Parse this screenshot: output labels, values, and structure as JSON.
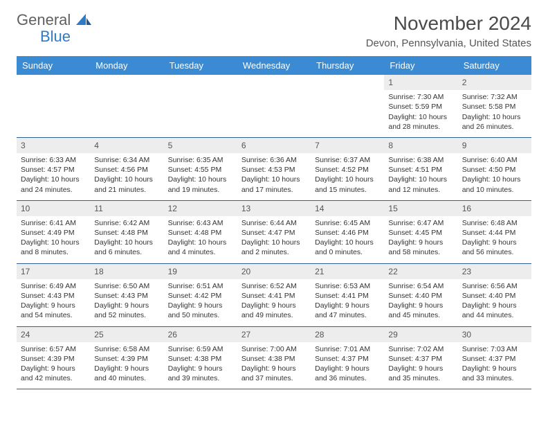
{
  "brand": {
    "name_part1": "General",
    "name_part2": "Blue",
    "color_primary": "#2d7bc8",
    "color_text": "#606060"
  },
  "header": {
    "title": "November 2024",
    "location": "Devon, Pennsylvania, United States"
  },
  "calendar": {
    "header_bg": "#3b8bd4",
    "header_fg": "#ffffff",
    "border_color": "#2d5f90",
    "daynum_bg": "#ededed",
    "columns": [
      "Sunday",
      "Monday",
      "Tuesday",
      "Wednesday",
      "Thursday",
      "Friday",
      "Saturday"
    ],
    "weeks": [
      [
        {
          "day": "",
          "lines": []
        },
        {
          "day": "",
          "lines": []
        },
        {
          "day": "",
          "lines": []
        },
        {
          "day": "",
          "lines": []
        },
        {
          "day": "",
          "lines": []
        },
        {
          "day": "1",
          "lines": [
            "Sunrise: 7:30 AM",
            "Sunset: 5:59 PM",
            "Daylight: 10 hours and 28 minutes."
          ]
        },
        {
          "day": "2",
          "lines": [
            "Sunrise: 7:32 AM",
            "Sunset: 5:58 PM",
            "Daylight: 10 hours and 26 minutes."
          ]
        }
      ],
      [
        {
          "day": "3",
          "lines": [
            "Sunrise: 6:33 AM",
            "Sunset: 4:57 PM",
            "Daylight: 10 hours and 24 minutes."
          ]
        },
        {
          "day": "4",
          "lines": [
            "Sunrise: 6:34 AM",
            "Sunset: 4:56 PM",
            "Daylight: 10 hours and 21 minutes."
          ]
        },
        {
          "day": "5",
          "lines": [
            "Sunrise: 6:35 AM",
            "Sunset: 4:55 PM",
            "Daylight: 10 hours and 19 minutes."
          ]
        },
        {
          "day": "6",
          "lines": [
            "Sunrise: 6:36 AM",
            "Sunset: 4:53 PM",
            "Daylight: 10 hours and 17 minutes."
          ]
        },
        {
          "day": "7",
          "lines": [
            "Sunrise: 6:37 AM",
            "Sunset: 4:52 PM",
            "Daylight: 10 hours and 15 minutes."
          ]
        },
        {
          "day": "8",
          "lines": [
            "Sunrise: 6:38 AM",
            "Sunset: 4:51 PM",
            "Daylight: 10 hours and 12 minutes."
          ]
        },
        {
          "day": "9",
          "lines": [
            "Sunrise: 6:40 AM",
            "Sunset: 4:50 PM",
            "Daylight: 10 hours and 10 minutes."
          ]
        }
      ],
      [
        {
          "day": "10",
          "lines": [
            "Sunrise: 6:41 AM",
            "Sunset: 4:49 PM",
            "Daylight: 10 hours and 8 minutes."
          ]
        },
        {
          "day": "11",
          "lines": [
            "Sunrise: 6:42 AM",
            "Sunset: 4:48 PM",
            "Daylight: 10 hours and 6 minutes."
          ]
        },
        {
          "day": "12",
          "lines": [
            "Sunrise: 6:43 AM",
            "Sunset: 4:48 PM",
            "Daylight: 10 hours and 4 minutes."
          ]
        },
        {
          "day": "13",
          "lines": [
            "Sunrise: 6:44 AM",
            "Sunset: 4:47 PM",
            "Daylight: 10 hours and 2 minutes."
          ]
        },
        {
          "day": "14",
          "lines": [
            "Sunrise: 6:45 AM",
            "Sunset: 4:46 PM",
            "Daylight: 10 hours and 0 minutes."
          ]
        },
        {
          "day": "15",
          "lines": [
            "Sunrise: 6:47 AM",
            "Sunset: 4:45 PM",
            "Daylight: 9 hours and 58 minutes."
          ]
        },
        {
          "day": "16",
          "lines": [
            "Sunrise: 6:48 AM",
            "Sunset: 4:44 PM",
            "Daylight: 9 hours and 56 minutes."
          ]
        }
      ],
      [
        {
          "day": "17",
          "lines": [
            "Sunrise: 6:49 AM",
            "Sunset: 4:43 PM",
            "Daylight: 9 hours and 54 minutes."
          ]
        },
        {
          "day": "18",
          "lines": [
            "Sunrise: 6:50 AM",
            "Sunset: 4:43 PM",
            "Daylight: 9 hours and 52 minutes."
          ]
        },
        {
          "day": "19",
          "lines": [
            "Sunrise: 6:51 AM",
            "Sunset: 4:42 PM",
            "Daylight: 9 hours and 50 minutes."
          ]
        },
        {
          "day": "20",
          "lines": [
            "Sunrise: 6:52 AM",
            "Sunset: 4:41 PM",
            "Daylight: 9 hours and 49 minutes."
          ]
        },
        {
          "day": "21",
          "lines": [
            "Sunrise: 6:53 AM",
            "Sunset: 4:41 PM",
            "Daylight: 9 hours and 47 minutes."
          ]
        },
        {
          "day": "22",
          "lines": [
            "Sunrise: 6:54 AM",
            "Sunset: 4:40 PM",
            "Daylight: 9 hours and 45 minutes."
          ]
        },
        {
          "day": "23",
          "lines": [
            "Sunrise: 6:56 AM",
            "Sunset: 4:40 PM",
            "Daylight: 9 hours and 44 minutes."
          ]
        }
      ],
      [
        {
          "day": "24",
          "lines": [
            "Sunrise: 6:57 AM",
            "Sunset: 4:39 PM",
            "Daylight: 9 hours and 42 minutes."
          ]
        },
        {
          "day": "25",
          "lines": [
            "Sunrise: 6:58 AM",
            "Sunset: 4:39 PM",
            "Daylight: 9 hours and 40 minutes."
          ]
        },
        {
          "day": "26",
          "lines": [
            "Sunrise: 6:59 AM",
            "Sunset: 4:38 PM",
            "Daylight: 9 hours and 39 minutes."
          ]
        },
        {
          "day": "27",
          "lines": [
            "Sunrise: 7:00 AM",
            "Sunset: 4:38 PM",
            "Daylight: 9 hours and 37 minutes."
          ]
        },
        {
          "day": "28",
          "lines": [
            "Sunrise: 7:01 AM",
            "Sunset: 4:37 PM",
            "Daylight: 9 hours and 36 minutes."
          ]
        },
        {
          "day": "29",
          "lines": [
            "Sunrise: 7:02 AM",
            "Sunset: 4:37 PM",
            "Daylight: 9 hours and 35 minutes."
          ]
        },
        {
          "day": "30",
          "lines": [
            "Sunrise: 7:03 AM",
            "Sunset: 4:37 PM",
            "Daylight: 9 hours and 33 minutes."
          ]
        }
      ]
    ]
  }
}
